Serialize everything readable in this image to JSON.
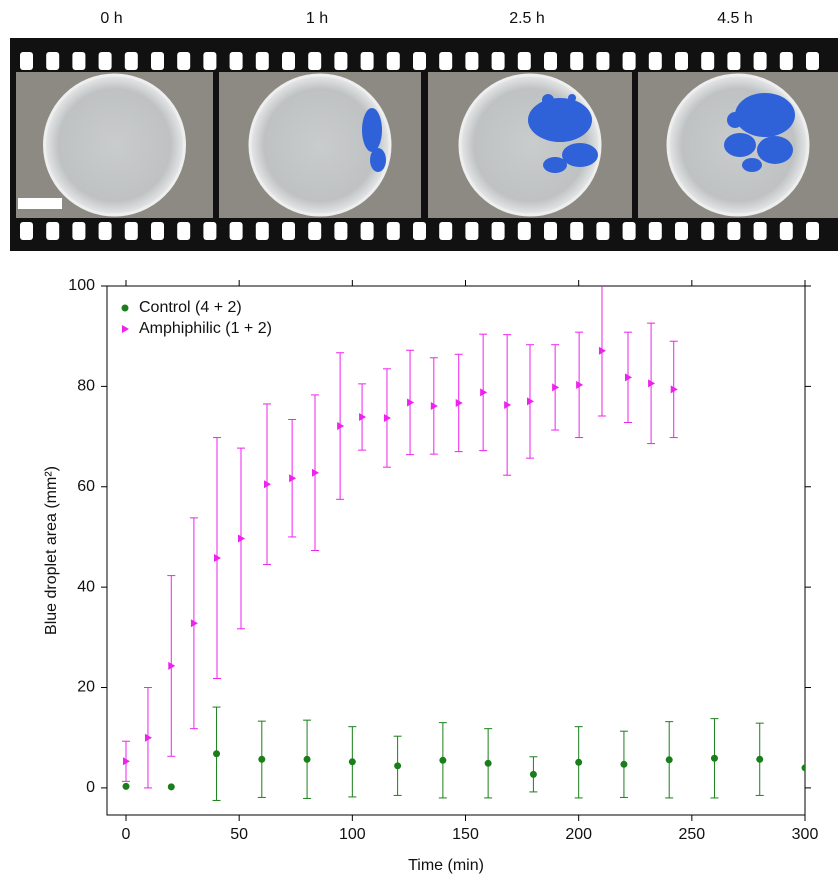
{
  "film_strip": {
    "labels": [
      "0 h",
      "1 h",
      "2.5 h",
      "4.5 h"
    ]
  },
  "chart_data": {
    "type": "scatter",
    "xlabel": "Time (min)",
    "ylabel": "Blue droplet area (mm²)",
    "xlim": [
      -8.4,
      300
    ],
    "ylim": [
      -5.4,
      100
    ],
    "xticks": [
      0,
      50,
      100,
      150,
      200,
      250,
      300
    ],
    "yticks": [
      0,
      20,
      40,
      60,
      80,
      100
    ],
    "legend": "upper left",
    "series": [
      {
        "name": "Control (4 + 2)",
        "color": "#1a7f1a",
        "marker": "circle",
        "x": [
          0,
          20,
          40,
          60,
          80,
          100,
          120,
          140,
          160,
          180,
          200,
          220,
          240,
          260,
          280,
          300
        ],
        "values": [
          0.3,
          0.2,
          6.8,
          5.7,
          5.7,
          5.2,
          4.4,
          5.5,
          4.9,
          2.7,
          5.1,
          4.7,
          5.6,
          5.9,
          5.7,
          4.0
        ],
        "errors": [
          null,
          null,
          9.3,
          7.6,
          7.8,
          7.0,
          5.9,
          7.5,
          6.9,
          3.5,
          7.1,
          6.6,
          7.6,
          7.9,
          7.2,
          null
        ]
      },
      {
        "name": "Amphiphilic (1 + 2)",
        "color": "#ee22ee",
        "marker": "triangle-right",
        "x": [
          0,
          9.7,
          20,
          30,
          40.2,
          50.8,
          62.3,
          73.4,
          83.5,
          94.6,
          104.3,
          115.3,
          125.5,
          136,
          147,
          157.8,
          168.4,
          178.5,
          189.6,
          200.2,
          210.3,
          221.8,
          232,
          242
        ],
        "values": [
          5.3,
          10,
          24.3,
          32.8,
          45.8,
          49.7,
          60.5,
          61.7,
          62.8,
          72.1,
          73.9,
          73.7,
          76.8,
          76.1,
          76.7,
          78.8,
          76.3,
          77,
          79.8,
          80.3,
          87.1,
          81.8,
          80.6,
          79.4
        ],
        "errors": [
          4,
          10,
          18,
          21,
          24,
          18,
          16,
          11.7,
          15.5,
          14.6,
          6.6,
          9.8,
          10.4,
          9.6,
          9.7,
          11.6,
          14,
          11.3,
          8.5,
          10.5,
          13,
          9,
          12,
          9.6
        ]
      }
    ]
  }
}
